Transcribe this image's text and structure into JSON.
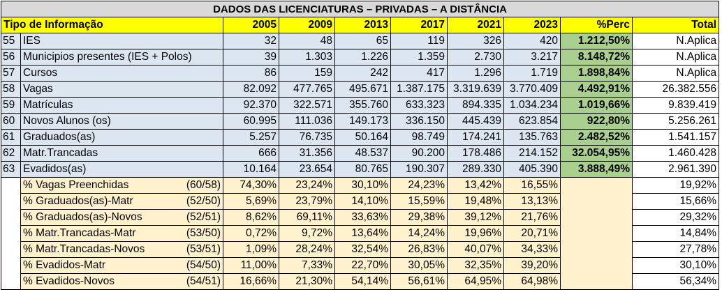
{
  "title": "DADOS DAS LICENCIATURAS – PRIVADAS – A DISTÂNCIA",
  "header": {
    "label": "Tipo de Informação",
    "years": [
      "2005",
      "2009",
      "2013",
      "2017",
      "2021",
      "2023"
    ],
    "perc": "%Perc",
    "total": "Total"
  },
  "rows": [
    {
      "idx": "55",
      "label": "IES",
      "values": [
        "32",
        "48",
        "65",
        "119",
        "326",
        "420"
      ],
      "perc": "1.212,50%",
      "total": "N.Aplica"
    },
    {
      "idx": "56",
      "label": "Municipios presentes (IES + Polos)",
      "values": [
        "39",
        "1.303",
        "1.226",
        "1.359",
        "2.730",
        "3.217"
      ],
      "perc": "8.148,72%",
      "total": "N.Aplica"
    },
    {
      "idx": "57",
      "label": "Cursos",
      "values": [
        "86",
        "159",
        "242",
        "417",
        "1.296",
        "1.719"
      ],
      "perc": "1.898,84%",
      "total": "N.Aplica"
    },
    {
      "idx": "58",
      "label": "Vagas",
      "values": [
        "82.092",
        "477.765",
        "495.671",
        "1.387.175",
        "3.319.639",
        "3.770.409"
      ],
      "perc": "4.492,91%",
      "total": "26.382.556"
    },
    {
      "idx": "59",
      "label": "Matrículas",
      "values": [
        "92.370",
        "322.571",
        "355.760",
        "633.323",
        "894.335",
        "1.034.234"
      ],
      "perc": "1.019,66%",
      "total": "9.839.419"
    },
    {
      "idx": "60",
      "label": "Novos Alunos (os)",
      "values": [
        "60.995",
        "111.036",
        "149.173",
        "336.150",
        "445.439",
        "623.854"
      ],
      "perc": "922,80%",
      "total": "5.256.261"
    },
    {
      "idx": "61",
      "label": "Graduados(as)",
      "values": [
        "5.257",
        "76.735",
        "50.164",
        "98.749",
        "174.241",
        "135.763"
      ],
      "perc": "2.482,52%",
      "total": "1.541.157"
    },
    {
      "idx": "62",
      "label": "Matr.Trancadas",
      "values": [
        "666",
        "31.356",
        "48.537",
        "90.200",
        "178.486",
        "214.152"
      ],
      "perc": "32.054,95%",
      "total": "1.460.428"
    },
    {
      "idx": "63",
      "label": "Evadidos(as)",
      "values": [
        "10.164",
        "23.654",
        "80.765",
        "190.307",
        "289.330",
        "405.390"
      ],
      "perc": "3.888,49%",
      "total": "2.961.390"
    }
  ],
  "ratios": [
    {
      "label": "% Vagas Preenchidas",
      "ref": "(60/58)",
      "values": [
        "74,30%",
        "23,24%",
        "30,10%",
        "24,23%",
        "13,42%",
        "16,55%"
      ],
      "total": "19,92%"
    },
    {
      "label": "% Graduados(as)-Matr",
      "ref": "(52/50)",
      "values": [
        "5,69%",
        "23,79%",
        "14,10%",
        "15,59%",
        "19,48%",
        "13,13%"
      ],
      "total": "15,66%"
    },
    {
      "label": "% Graduados(as)-Novos",
      "ref": "(52/51)",
      "values": [
        "8,62%",
        "69,11%",
        "33,63%",
        "29,38%",
        "39,12%",
        "21,76%"
      ],
      "total": "29,32%"
    },
    {
      "label": "% Matr.Trancadas-Matr",
      "ref": "(53/50)",
      "values": [
        "0,72%",
        "9,72%",
        "13,64%",
        "14,24%",
        "19,96%",
        "20,71%"
      ],
      "total": "14,84%"
    },
    {
      "label": "% Matr.Trancadas-Novos",
      "ref": "(53/51)",
      "values": [
        "1,09%",
        "28,24%",
        "32,54%",
        "26,83%",
        "40,07%",
        "34,33%"
      ],
      "total": "27,78%"
    },
    {
      "label": "% Evadidos-Matr",
      "ref": "(54/50)",
      "values": [
        "11,00%",
        "7,33%",
        "22,70%",
        "30,05%",
        "32,35%",
        "39,20%"
      ],
      "total": "30,10%"
    },
    {
      "label": "% Evadidos-Novos",
      "ref": "(54/51)",
      "values": [
        "16,66%",
        "21,30%",
        "54,14%",
        "56,61%",
        "64,95%",
        "64,98%"
      ],
      "total": "56,34%"
    }
  ]
}
